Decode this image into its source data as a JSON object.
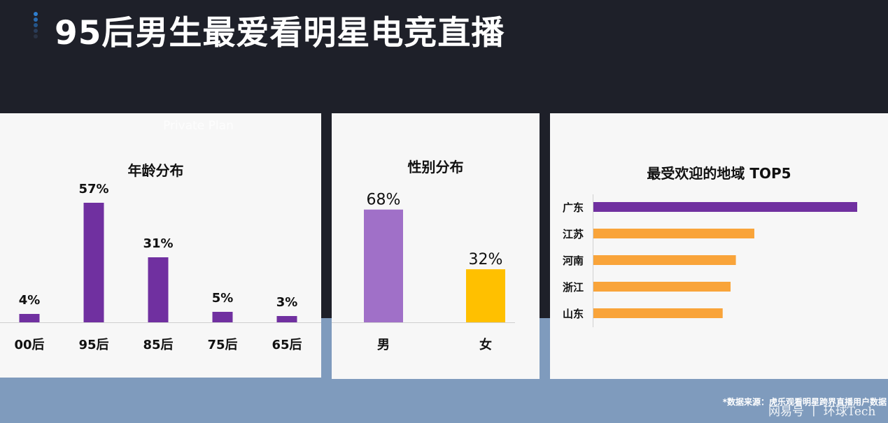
{
  "title": "95后男生最爱看明星电竞直播",
  "overlay_text": "Private Plan",
  "source_note": "*数据来源：虎乐观看明星跨界直播用户数据",
  "watermark": "网易号 丨 环球Tech",
  "colors": {
    "purple": "#7030a0",
    "lilac": "#a070c8",
    "gold": "#ffc000",
    "orange": "#f9a43a",
    "header_bg": "#1e2029",
    "band": "#7f9bbd"
  },
  "chart_data": [
    {
      "type": "bar",
      "title": "年龄分布",
      "categories": [
        "00后",
        "95后",
        "85后",
        "75后",
        "65后"
      ],
      "values": [
        4,
        57,
        31,
        5,
        3
      ],
      "value_labels": [
        "4%",
        "57%",
        "31%",
        "5%",
        "3%"
      ],
      "ylim": [
        0,
        60
      ],
      "colors": [
        "#7030a0",
        "#7030a0",
        "#7030a0",
        "#7030a0",
        "#7030a0"
      ]
    },
    {
      "type": "bar",
      "title": "性别分布",
      "categories": [
        "男",
        "女"
      ],
      "values": [
        68,
        32
      ],
      "value_labels": [
        "68%",
        "32%"
      ],
      "ylim": [
        0,
        70
      ],
      "colors": [
        "#a070c8",
        "#ffc000"
      ]
    },
    {
      "type": "bar",
      "orientation": "horizontal",
      "title": "最受欢迎的地域 TOP5",
      "categories": [
        "广东",
        "江苏",
        "河南",
        "浙江",
        "山东"
      ],
      "values": [
        100,
        61,
        54,
        52,
        49
      ],
      "xlim": [
        0,
        100
      ],
      "colors": [
        "#7030a0",
        "#f9a43a",
        "#f9a43a",
        "#f9a43a",
        "#f9a43a"
      ]
    }
  ]
}
